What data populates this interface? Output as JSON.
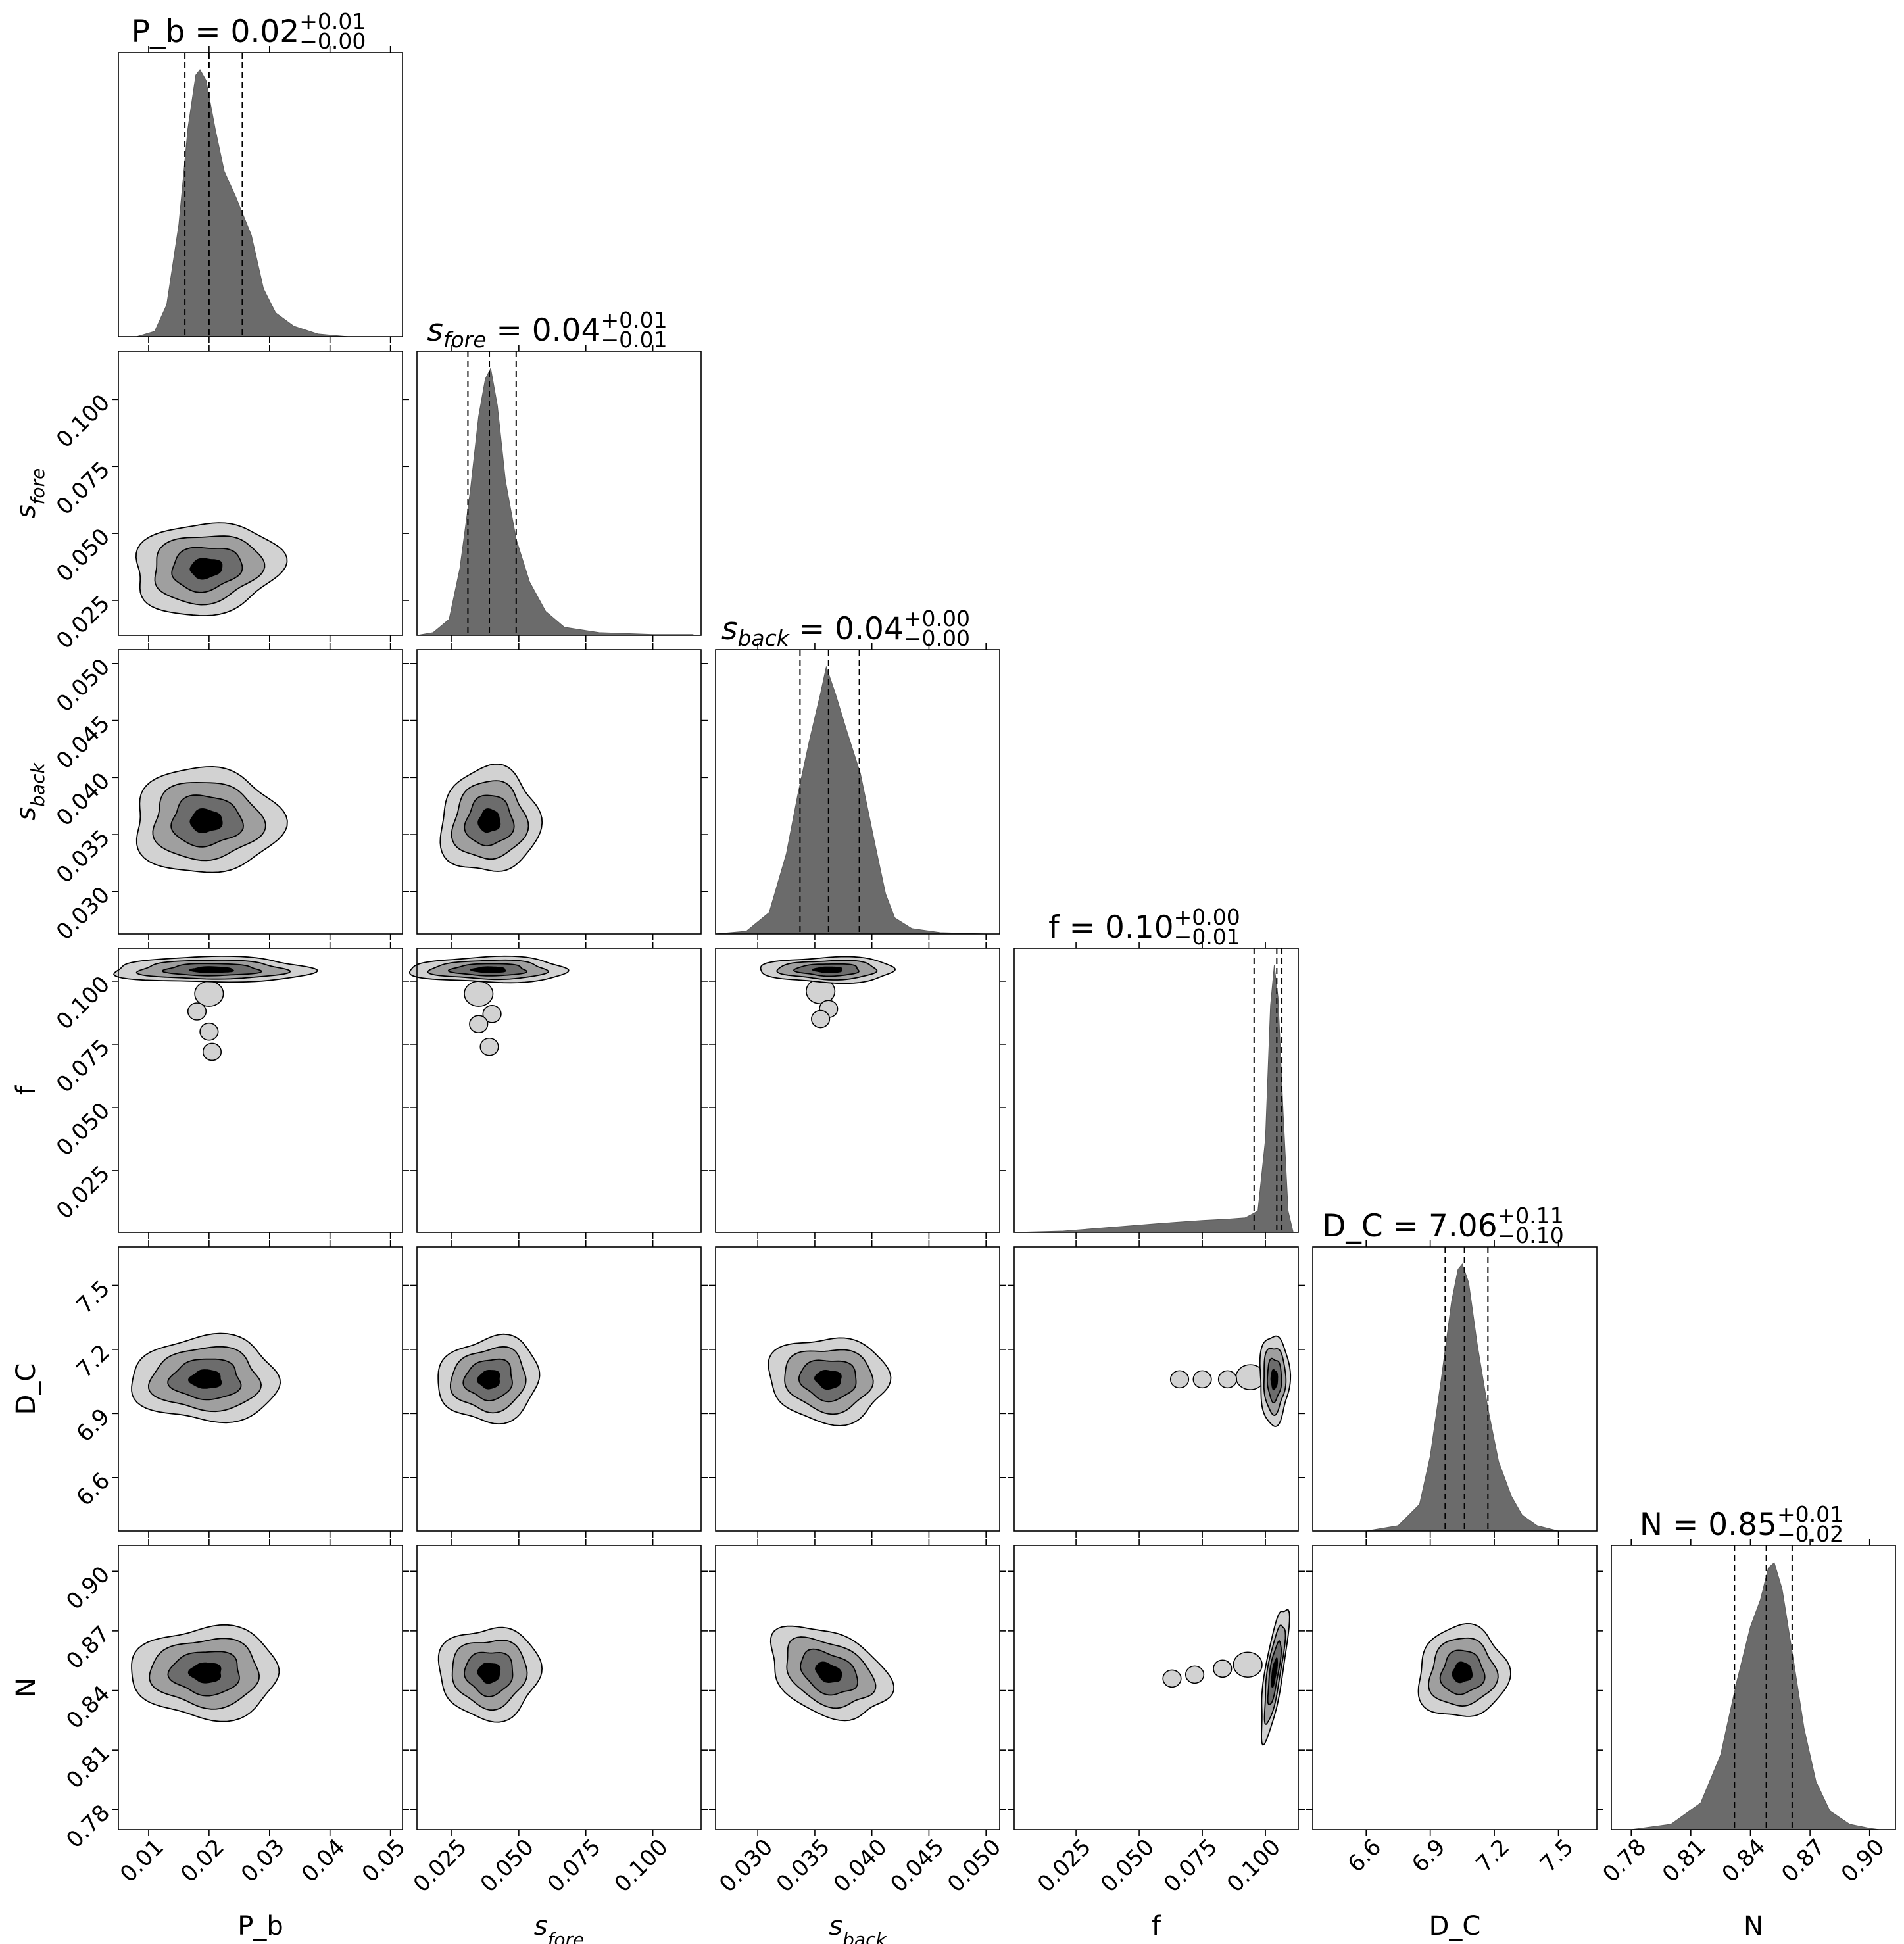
{
  "chart_data": {
    "type": "corner",
    "parameters": [
      {
        "key": "P_b",
        "base": "P_b",
        "sub": "",
        "italic": false,
        "range": [
          0.005,
          0.052
        ],
        "ticks": [
          0.01,
          0.02,
          0.03,
          0.04,
          0.05
        ],
        "tick_labels": [
          "0.01",
          "0.02",
          "0.03",
          "0.04",
          "0.05"
        ],
        "median": 0.02,
        "q_lo": 0.016,
        "q_hi": 0.0255,
        "title": {
          "value": "0.02",
          "plus": "+0.01",
          "minus": "−0.00"
        }
      },
      {
        "key": "s_fore",
        "base": "s",
        "sub": "fore",
        "italic": true,
        "range": [
          0.012,
          0.118
        ],
        "ticks": [
          0.025,
          0.05,
          0.075,
          0.1
        ],
        "tick_labels": [
          "0.025",
          "0.050",
          "0.075",
          "0.100"
        ],
        "median": 0.039,
        "q_lo": 0.031,
        "q_hi": 0.049,
        "title": {
          "value": "0.04",
          "plus": "+0.01",
          "minus": "−0.01"
        }
      },
      {
        "key": "s_back",
        "base": "s",
        "sub": "back",
        "italic": true,
        "range": [
          0.0263,
          0.0512
        ],
        "ticks": [
          0.03,
          0.035,
          0.04,
          0.045,
          0.05
        ],
        "tick_labels": [
          "0.030",
          "0.035",
          "0.040",
          "0.045",
          "0.050"
        ],
        "median": 0.0362,
        "q_lo": 0.0337,
        "q_hi": 0.0389,
        "title": {
          "value": "0.04",
          "plus": "+0.00",
          "minus": "−0.00"
        }
      },
      {
        "key": "f",
        "base": "f",
        "sub": "",
        "italic": false,
        "range": [
          0.0005,
          0.113
        ],
        "ticks": [
          0.025,
          0.05,
          0.075,
          0.1
        ],
        "tick_labels": [
          "0.025",
          "0.050",
          "0.075",
          "0.100"
        ],
        "median": 0.1045,
        "q_lo": 0.0955,
        "q_hi": 0.1065,
        "title": {
          "value": "0.10",
          "plus": "+0.00",
          "minus": "−0.01"
        }
      },
      {
        "key": "D_C",
        "base": "D_C",
        "sub": "",
        "italic": false,
        "range": [
          6.35,
          7.68
        ],
        "ticks": [
          6.6,
          6.9,
          7.2,
          7.5
        ],
        "tick_labels": [
          "6.6",
          "6.9",
          "7.2",
          "7.5"
        ],
        "median": 7.06,
        "q_lo": 6.97,
        "q_hi": 7.17,
        "title": {
          "value": "7.06",
          "plus": "+0.11",
          "minus": "−0.10"
        }
      },
      {
        "key": "N",
        "base": "N",
        "sub": "",
        "italic": false,
        "range": [
          0.77,
          0.913
        ],
        "ticks": [
          0.78,
          0.81,
          0.84,
          0.87,
          0.9
        ],
        "tick_labels": [
          "0.78",
          "0.81",
          "0.84",
          "0.87",
          "0.90"
        ],
        "median": 0.848,
        "q_lo": 0.832,
        "q_hi": 0.861,
        "title": {
          "value": "0.85",
          "plus": "+0.01",
          "minus": "−0.02"
        }
      }
    ],
    "histograms": {
      "P_b": [
        [
          0.008,
          0
        ],
        [
          0.011,
          0.02
        ],
        [
          0.013,
          0.12
        ],
        [
          0.015,
          0.42
        ],
        [
          0.0165,
          0.78
        ],
        [
          0.0178,
          0.98
        ],
        [
          0.0185,
          1.0
        ],
        [
          0.0195,
          0.96
        ],
        [
          0.021,
          0.78
        ],
        [
          0.0225,
          0.62
        ],
        [
          0.0245,
          0.52
        ],
        [
          0.027,
          0.38
        ],
        [
          0.029,
          0.18
        ],
        [
          0.031,
          0.09
        ],
        [
          0.034,
          0.04
        ],
        [
          0.038,
          0.01
        ],
        [
          0.043,
          0
        ]
      ],
      "s_fore": [
        [
          0.012,
          0
        ],
        [
          0.018,
          0.01
        ],
        [
          0.024,
          0.06
        ],
        [
          0.028,
          0.25
        ],
        [
          0.032,
          0.55
        ],
        [
          0.035,
          0.82
        ],
        [
          0.0375,
          0.96
        ],
        [
          0.0395,
          1.0
        ],
        [
          0.042,
          0.86
        ],
        [
          0.045,
          0.58
        ],
        [
          0.049,
          0.36
        ],
        [
          0.054,
          0.2
        ],
        [
          0.06,
          0.09
        ],
        [
          0.067,
          0.03
        ],
        [
          0.08,
          0.01
        ],
        [
          0.1,
          0.003
        ],
        [
          0.115,
          0.003
        ]
      ],
      "s_back": [
        [
          0.0263,
          0
        ],
        [
          0.029,
          0.01
        ],
        [
          0.031,
          0.08
        ],
        [
          0.0325,
          0.3
        ],
        [
          0.0335,
          0.52
        ],
        [
          0.0345,
          0.72
        ],
        [
          0.0355,
          0.9
        ],
        [
          0.036,
          1.0
        ],
        [
          0.0368,
          0.9
        ],
        [
          0.0378,
          0.76
        ],
        [
          0.039,
          0.6
        ],
        [
          0.0402,
          0.35
        ],
        [
          0.0412,
          0.15
        ],
        [
          0.042,
          0.06
        ],
        [
          0.0435,
          0.02
        ],
        [
          0.046,
          0.005
        ],
        [
          0.05,
          0
        ]
      ],
      "f": [
        [
          0.0005,
          0
        ],
        [
          0.02,
          0.005
        ],
        [
          0.04,
          0.02
        ],
        [
          0.06,
          0.035
        ],
        [
          0.075,
          0.045
        ],
        [
          0.085,
          0.05
        ],
        [
          0.092,
          0.055
        ],
        [
          0.097,
          0.08
        ],
        [
          0.1,
          0.35
        ],
        [
          0.102,
          0.85
        ],
        [
          0.1035,
          1.0
        ],
        [
          0.105,
          0.88
        ],
        [
          0.107,
          0.45
        ],
        [
          0.109,
          0.08
        ],
        [
          0.111,
          0
        ]
      ],
      "D_C": [
        [
          6.6,
          0
        ],
        [
          6.75,
          0.02
        ],
        [
          6.85,
          0.1
        ],
        [
          6.9,
          0.28
        ],
        [
          6.95,
          0.56
        ],
        [
          7.0,
          0.86
        ],
        [
          7.03,
          0.98
        ],
        [
          7.05,
          1.0
        ],
        [
          7.08,
          0.93
        ],
        [
          7.12,
          0.7
        ],
        [
          7.17,
          0.46
        ],
        [
          7.22,
          0.26
        ],
        [
          7.28,
          0.13
        ],
        [
          7.33,
          0.06
        ],
        [
          7.4,
          0.02
        ],
        [
          7.5,
          0
        ]
      ],
      "N": [
        [
          0.78,
          0
        ],
        [
          0.8,
          0.02
        ],
        [
          0.815,
          0.1
        ],
        [
          0.825,
          0.28
        ],
        [
          0.833,
          0.55
        ],
        [
          0.84,
          0.76
        ],
        [
          0.845,
          0.86
        ],
        [
          0.849,
          0.98
        ],
        [
          0.852,
          1.0
        ],
        [
          0.856,
          0.9
        ],
        [
          0.862,
          0.62
        ],
        [
          0.867,
          0.38
        ],
        [
          0.873,
          0.18
        ],
        [
          0.88,
          0.07
        ],
        [
          0.89,
          0.02
        ],
        [
          0.9,
          0.005
        ],
        [
          0.905,
          0
        ]
      ]
    },
    "contours": {
      "1-0": {
        "c": [
          0.0195,
          0.037
        ],
        "s": [
          0.0058,
          0.0082
        ],
        "rho": 0.12
      },
      "2-0": {
        "c": [
          0.0195,
          0.0362
        ],
        "s": [
          0.0058,
          0.0022
        ],
        "rho": 0.0
      },
      "2-1": {
        "c": [
          0.039,
          0.0362
        ],
        "s": [
          0.0088,
          0.0022
        ],
        "rho": 0.05
      },
      "3-0": {
        "c": [
          0.0205,
          0.1045
        ],
        "s": [
          0.0078,
          0.0024
        ],
        "rho": 0.0,
        "tail": [
          [
            0.02,
            0.095
          ],
          [
            0.018,
            0.088
          ],
          [
            0.02,
            0.08
          ],
          [
            0.0205,
            0.072
          ]
        ]
      },
      "3-1": {
        "c": [
          0.039,
          0.1045
        ],
        "s": [
          0.014,
          0.0024
        ],
        "rho": 0.0,
        "tail": [
          [
            0.035,
            0.095
          ],
          [
            0.04,
            0.087
          ],
          [
            0.035,
            0.083
          ],
          [
            0.039,
            0.074
          ]
        ]
      },
      "3-2": {
        "c": [
          0.0362,
          0.1045
        ],
        "s": [
          0.0028,
          0.0024
        ],
        "rho": 0.0,
        "tail": [
          [
            0.0355,
            0.096
          ],
          [
            0.0362,
            0.089
          ],
          [
            0.0355,
            0.085
          ]
        ]
      },
      "4-0": {
        "c": [
          0.0195,
          7.06
        ],
        "s": [
          0.0058,
          0.095
        ],
        "rho": 0.0
      },
      "4-1": {
        "c": [
          0.039,
          7.06
        ],
        "s": [
          0.009,
          0.095
        ],
        "rho": 0.08
      },
      "4-2": {
        "c": [
          0.0362,
          7.06
        ],
        "s": [
          0.0025,
          0.095
        ],
        "rho": -0.05
      },
      "4-3": {
        "c": [
          0.1035,
          7.06
        ],
        "s": [
          0.0028,
          0.1
        ],
        "rho": 0.0,
        "tail": [
          [
            0.094,
            7.07
          ],
          [
            0.085,
            7.06
          ],
          [
            0.075,
            7.06
          ],
          [
            0.066,
            7.06
          ]
        ]
      },
      "5-0": {
        "c": [
          0.0195,
          0.849
        ],
        "s": [
          0.0058,
          0.011
        ],
        "rho": 0.0
      },
      "5-1": {
        "c": [
          0.039,
          0.849
        ],
        "s": [
          0.009,
          0.011
        ],
        "rho": 0.0
      },
      "5-2": {
        "c": [
          0.0362,
          0.849
        ],
        "s": [
          0.0025,
          0.011
        ],
        "rho": -0.35
      },
      "5-3": {
        "c": [
          0.1035,
          0.849
        ],
        "s": [
          0.0026,
          0.016
        ],
        "rho": 0.75,
        "tail": [
          [
            0.093,
            0.853
          ],
          [
            0.083,
            0.851
          ],
          [
            0.072,
            0.848
          ],
          [
            0.063,
            0.846
          ]
        ]
      },
      "5-4": {
        "c": [
          7.05,
          0.849
        ],
        "s": [
          0.1,
          0.011
        ],
        "rho": 0.05
      }
    }
  }
}
